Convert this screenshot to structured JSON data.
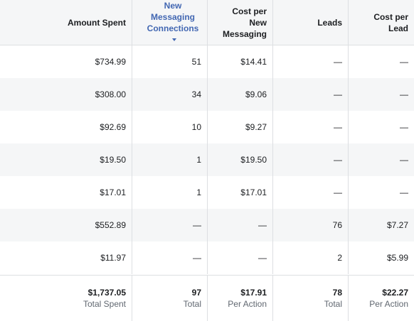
{
  "headers": [
    {
      "label": "Amount Spent"
    },
    {
      "label": "New Messaging Connections",
      "sorted": true
    },
    {
      "label": "Cost per New Messaging"
    },
    {
      "label": "Leads"
    },
    {
      "label": "Cost per Lead"
    }
  ],
  "rows": [
    [
      "$734.99",
      "51",
      "$14.41",
      "—",
      "—"
    ],
    [
      "$308.00",
      "34",
      "$9.06",
      "—",
      "—"
    ],
    [
      "$92.69",
      "10",
      "$9.27",
      "—",
      "—"
    ],
    [
      "$19.50",
      "1",
      "$19.50",
      "—",
      "—"
    ],
    [
      "$17.01",
      "1",
      "$17.01",
      "—",
      "—"
    ],
    [
      "$552.89",
      "—",
      "—",
      "76",
      "$7.27"
    ],
    [
      "$11.97",
      "—",
      "—",
      "2",
      "$5.99"
    ]
  ],
  "totals": [
    {
      "value": "$1,737.05",
      "label": "Total Spent"
    },
    {
      "value": "97",
      "label": "Total"
    },
    {
      "value": "$17.91",
      "label": "Per Action"
    },
    {
      "value": "78",
      "label": "Total"
    },
    {
      "value": "$22.27",
      "label": "Per Action"
    }
  ],
  "colors": {
    "accent": "#4267b2",
    "alt_row": "#f5f6f7",
    "border": "#dddfe2"
  },
  "icons": {
    "sort": "caret-down-icon"
  }
}
